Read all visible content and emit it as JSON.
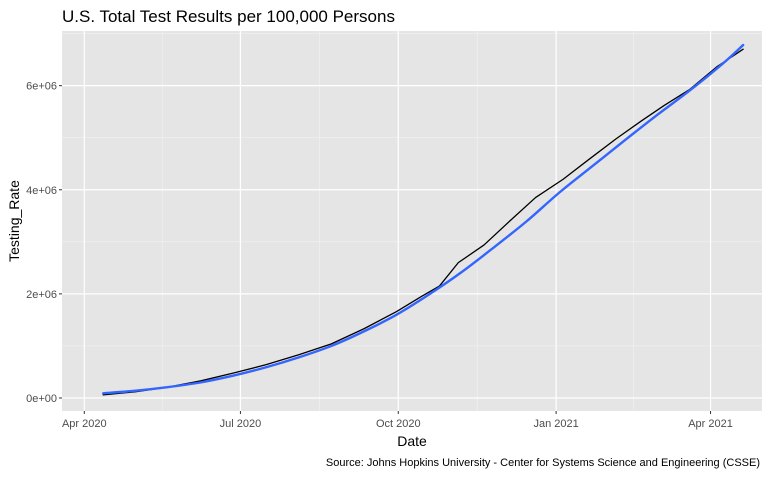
{
  "chart_data": {
    "type": "line",
    "title": "U.S. Total Test Results per 100,000 Persons",
    "xlabel": "Date",
    "ylabel": "Testing_Rate",
    "caption": "Source:  Johns Hopkins University - Center for Systems Science and Engineering (CSSE)",
    "grid": true,
    "background": "#e5e5e5",
    "x_ticks": [
      {
        "date": "2020-04-01",
        "label": "Apr 2020"
      },
      {
        "date": "2020-07-01",
        "label": "Jul 2020"
      },
      {
        "date": "2020-10-01",
        "label": "Oct 2020"
      },
      {
        "date": "2021-01-01",
        "label": "Jan 2021"
      },
      {
        "date": "2021-04-01",
        "label": "Apr 2021"
      }
    ],
    "xlim": [
      "2020-03-19",
      "2021-05-01"
    ],
    "y_ticks": [
      {
        "value": 0,
        "label": "0e+00"
      },
      {
        "value": 2000000,
        "label": "2e+06"
      },
      {
        "value": 4000000,
        "label": "4e+06"
      },
      {
        "value": 6000000,
        "label": "6e+06"
      }
    ],
    "ylim": [
      -250000,
      7050000
    ],
    "series": [
      {
        "color": "#000000",
        "stroke": "line",
        "x": [
          "2020-04-12",
          "2020-05-01",
          "2020-05-20",
          "2020-06-08",
          "2020-06-27",
          "2020-07-16",
          "2020-08-04",
          "2020-08-23",
          "2020-09-11",
          "2020-09-30",
          "2020-10-15",
          "2020-10-25",
          "2020-11-05",
          "2020-11-20",
          "2020-12-05",
          "2020-12-20",
          "2021-01-05",
          "2021-01-20",
          "2021-02-05",
          "2021-02-20",
          "2021-03-05",
          "2021-03-20",
          "2021-04-05",
          "2021-04-20"
        ],
        "values": [
          60000,
          120000,
          210000,
          330000,
          480000,
          640000,
          830000,
          1040000,
          1330000,
          1660000,
          1960000,
          2150000,
          2600000,
          2940000,
          3400000,
          3850000,
          4200000,
          4580000,
          4980000,
          5330000,
          5620000,
          5930000,
          6370000,
          6700000
        ]
      },
      {
        "color": "#3366ff",
        "stroke": "smooth",
        "x": [
          "2020-04-12",
          "2020-05-01",
          "2020-05-20",
          "2020-06-08",
          "2020-06-27",
          "2020-07-16",
          "2020-08-04",
          "2020-08-23",
          "2020-09-11",
          "2020-09-30",
          "2020-10-19",
          "2020-11-07",
          "2020-11-26",
          "2020-12-15",
          "2021-01-03",
          "2021-01-22",
          "2021-02-10",
          "2021-03-01",
          "2021-03-20",
          "2021-04-08",
          "2021-04-20"
        ],
        "values": [
          90000,
          140000,
          210000,
          300000,
          430000,
          590000,
          780000,
          1000000,
          1280000,
          1600000,
          1990000,
          2420000,
          2900000,
          3400000,
          3950000,
          4450000,
          4950000,
          5440000,
          5910000,
          6420000,
          6780000
        ]
      }
    ]
  }
}
